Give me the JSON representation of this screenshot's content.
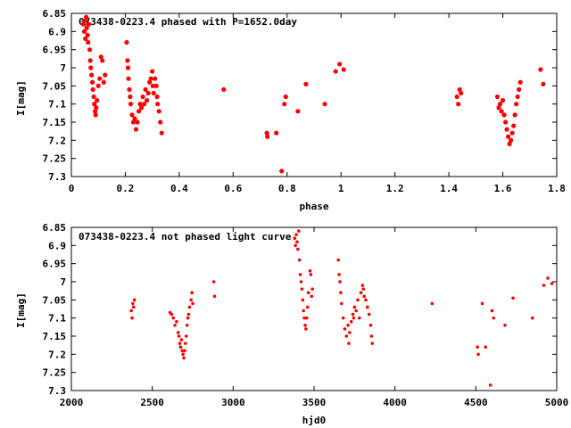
{
  "chart_data": [
    {
      "type": "scatter",
      "title": "073438-0223.4 phased with P=1652.0day",
      "xlabel": "phase",
      "ylabel": "I[mag]",
      "xlim": [
        0,
        1.8
      ],
      "ylim": [
        6.85,
        7.3
      ],
      "y_inverted": true,
      "x_ticks": [
        "0",
        "0.2",
        "0.4",
        "0.6",
        "0.8",
        "1",
        "1.2",
        "1.4",
        "1.6",
        "1.8"
      ],
      "y_ticks": [
        "6.85",
        "6.9",
        "6.95",
        "7",
        "7.05",
        "7.1",
        "7.15",
        "7.2",
        "7.25",
        "7.3"
      ],
      "marker_color": "#ff0000",
      "series": [
        {
          "points": [
            [
              0.045,
              6.88
            ],
            [
              0.048,
              6.9
            ],
            [
              0.05,
              6.87
            ],
            [
              0.052,
              6.92
            ],
            [
              0.055,
              6.86
            ],
            [
              0.057,
              6.89
            ],
            [
              0.06,
              6.91
            ],
            [
              0.062,
              6.93
            ],
            [
              0.065,
              6.88
            ],
            [
              0.068,
              6.95
            ],
            [
              0.07,
              6.98
            ],
            [
              0.072,
              7.0
            ],
            [
              0.075,
              7.02
            ],
            [
              0.078,
              7.04
            ],
            [
              0.08,
              7.06
            ],
            [
              0.083,
              7.08
            ],
            [
              0.085,
              7.1
            ],
            [
              0.088,
              7.12
            ],
            [
              0.09,
              7.13
            ],
            [
              0.092,
              7.11
            ],
            [
              0.095,
              7.09
            ],
            [
              0.1,
              7.05
            ],
            [
              0.105,
              7.03
            ],
            [
              0.11,
              6.97
            ],
            [
              0.115,
              6.98
            ],
            [
              0.12,
              7.04
            ],
            [
              0.125,
              7.02
            ],
            [
              0.205,
              6.93
            ],
            [
              0.208,
              6.98
            ],
            [
              0.21,
              7.0
            ],
            [
              0.212,
              7.03
            ],
            [
              0.215,
              7.06
            ],
            [
              0.218,
              7.08
            ],
            [
              0.22,
              7.1
            ],
            [
              0.225,
              7.13
            ],
            [
              0.23,
              7.15
            ],
            [
              0.235,
              7.14
            ],
            [
              0.24,
              7.17
            ],
            [
              0.245,
              7.15
            ],
            [
              0.25,
              7.12
            ],
            [
              0.255,
              7.1
            ],
            [
              0.26,
              7.11
            ],
            [
              0.265,
              7.08
            ],
            [
              0.27,
              7.1
            ],
            [
              0.275,
              7.06
            ],
            [
              0.28,
              7.09
            ],
            [
              0.285,
              7.07
            ],
            [
              0.29,
              7.04
            ],
            [
              0.295,
              7.03
            ],
            [
              0.3,
              7.01
            ],
            [
              0.302,
              7.05
            ],
            [
              0.305,
              7.07
            ],
            [
              0.31,
              7.03
            ],
            [
              0.315,
              7.05
            ],
            [
              0.318,
              7.08
            ],
            [
              0.32,
              7.1
            ],
            [
              0.325,
              7.12
            ],
            [
              0.33,
              7.15
            ],
            [
              0.335,
              7.18
            ],
            [
              0.565,
              7.06
            ],
            [
              0.725,
              7.18
            ],
            [
              0.727,
              7.19
            ],
            [
              0.76,
              7.18
            ],
            [
              0.78,
              7.285
            ],
            [
              0.79,
              7.1
            ],
            [
              0.795,
              7.08
            ],
            [
              0.84,
              7.12
            ],
            [
              0.87,
              7.045
            ],
            [
              0.94,
              7.1
            ],
            [
              0.98,
              7.01
            ],
            [
              0.995,
              6.99
            ],
            [
              1.01,
              7.005
            ],
            [
              1.43,
              7.08
            ],
            [
              1.435,
              7.1
            ],
            [
              1.44,
              7.06
            ],
            [
              1.445,
              7.07
            ],
            [
              1.58,
              7.08
            ],
            [
              1.585,
              7.11
            ],
            [
              1.59,
              7.1
            ],
            [
              1.595,
              7.12
            ],
            [
              1.6,
              7.09
            ],
            [
              1.605,
              7.13
            ],
            [
              1.61,
              7.15
            ],
            [
              1.615,
              7.17
            ],
            [
              1.62,
              7.19
            ],
            [
              1.625,
              7.21
            ],
            [
              1.63,
              7.2
            ],
            [
              1.635,
              7.18
            ],
            [
              1.64,
              7.16
            ],
            [
              1.645,
              7.13
            ],
            [
              1.65,
              7.1
            ],
            [
              1.655,
              7.08
            ],
            [
              1.66,
              7.06
            ],
            [
              1.665,
              7.04
            ],
            [
              1.74,
              7.005
            ],
            [
              1.75,
              7.045
            ]
          ]
        }
      ]
    },
    {
      "type": "scatter",
      "title": "073438-0223.4 not phased light curve",
      "xlabel": "hjd0",
      "ylabel": "I[mag]",
      "xlim": [
        2000,
        5000
      ],
      "ylim": [
        6.85,
        7.3
      ],
      "y_inverted": true,
      "x_ticks": [
        "2000",
        "2500",
        "3000",
        "3500",
        "4000",
        "4500",
        "5000"
      ],
      "y_ticks": [
        "6.85",
        "6.9",
        "6.95",
        "7",
        "7.05",
        "7.1",
        "7.15",
        "7.2",
        "7.25",
        "7.3"
      ],
      "marker_color": "#ff0000",
      "series": [
        {
          "points": [
            [
              2370,
              7.08
            ],
            [
              2375,
              7.1
            ],
            [
              2380,
              7.06
            ],
            [
              2385,
              7.07
            ],
            [
              2390,
              7.05
            ],
            [
              2610,
              7.085
            ],
            [
              2620,
              7.09
            ],
            [
              2630,
              7.1
            ],
            [
              2640,
              7.12
            ],
            [
              2650,
              7.11
            ],
            [
              2660,
              7.14
            ],
            [
              2665,
              7.15
            ],
            [
              2670,
              7.17
            ],
            [
              2675,
              7.18
            ],
            [
              2680,
              7.16
            ],
            [
              2685,
              7.19
            ],
            [
              2690,
              7.2
            ],
            [
              2695,
              7.21
            ],
            [
              2700,
              7.19
            ],
            [
              2705,
              7.17
            ],
            [
              2710,
              7.15
            ],
            [
              2715,
              7.12
            ],
            [
              2720,
              7.1
            ],
            [
              2725,
              7.09
            ],
            [
              2730,
              7.07
            ],
            [
              2740,
              7.05
            ],
            [
              2745,
              7.03
            ],
            [
              2750,
              7.06
            ],
            [
              2880,
              7.0
            ],
            [
              2885,
              7.04
            ],
            [
              3380,
              6.88
            ],
            [
              3385,
              6.9
            ],
            [
              3390,
              6.87
            ],
            [
              3395,
              6.89
            ],
            [
              3400,
              6.91
            ],
            [
              3405,
              6.86
            ],
            [
              3410,
              6.94
            ],
            [
              3415,
              6.98
            ],
            [
              3420,
              7.0
            ],
            [
              3425,
              7.02
            ],
            [
              3430,
              7.05
            ],
            [
              3435,
              7.08
            ],
            [
              3440,
              7.1
            ],
            [
              3445,
              7.12
            ],
            [
              3450,
              7.13
            ],
            [
              3455,
              7.1
            ],
            [
              3460,
              7.07
            ],
            [
              3465,
              7.03
            ],
            [
              3475,
              6.97
            ],
            [
              3480,
              6.98
            ],
            [
              3485,
              7.04
            ],
            [
              3490,
              7.02
            ],
            [
              3650,
              6.94
            ],
            [
              3655,
              6.98
            ],
            [
              3660,
              7.0
            ],
            [
              3665,
              7.03
            ],
            [
              3670,
              7.06
            ],
            [
              3680,
              7.1
            ],
            [
              3690,
              7.13
            ],
            [
              3700,
              7.15
            ],
            [
              3710,
              7.12
            ],
            [
              3715,
              7.17
            ],
            [
              3720,
              7.14
            ],
            [
              3730,
              7.11
            ],
            [
              3740,
              7.09
            ],
            [
              3745,
              7.1
            ],
            [
              3750,
              7.07
            ],
            [
              3760,
              7.08
            ],
            [
              3770,
              7.05
            ],
            [
              3780,
              7.1
            ],
            [
              3790,
              7.03
            ],
            [
              3800,
              7.01
            ],
            [
              3805,
              7.02
            ],
            [
              3810,
              7.04
            ],
            [
              3820,
              7.05
            ],
            [
              3830,
              7.07
            ],
            [
              3840,
              7.09
            ],
            [
              3850,
              7.12
            ],
            [
              3855,
              7.15
            ],
            [
              3860,
              7.17
            ],
            [
              4230,
              7.06
            ],
            [
              4510,
              7.18
            ],
            [
              4515,
              7.2
            ],
            [
              4540,
              7.06
            ],
            [
              4560,
              7.18
            ],
            [
              4590,
              7.285
            ],
            [
              4600,
              7.08
            ],
            [
              4610,
              7.1
            ],
            [
              4680,
              7.12
            ],
            [
              4730,
              7.045
            ],
            [
              4850,
              7.1
            ],
            [
              4920,
              7.01
            ],
            [
              4945,
              6.99
            ],
            [
              4970,
              7.005
            ]
          ]
        }
      ]
    }
  ]
}
